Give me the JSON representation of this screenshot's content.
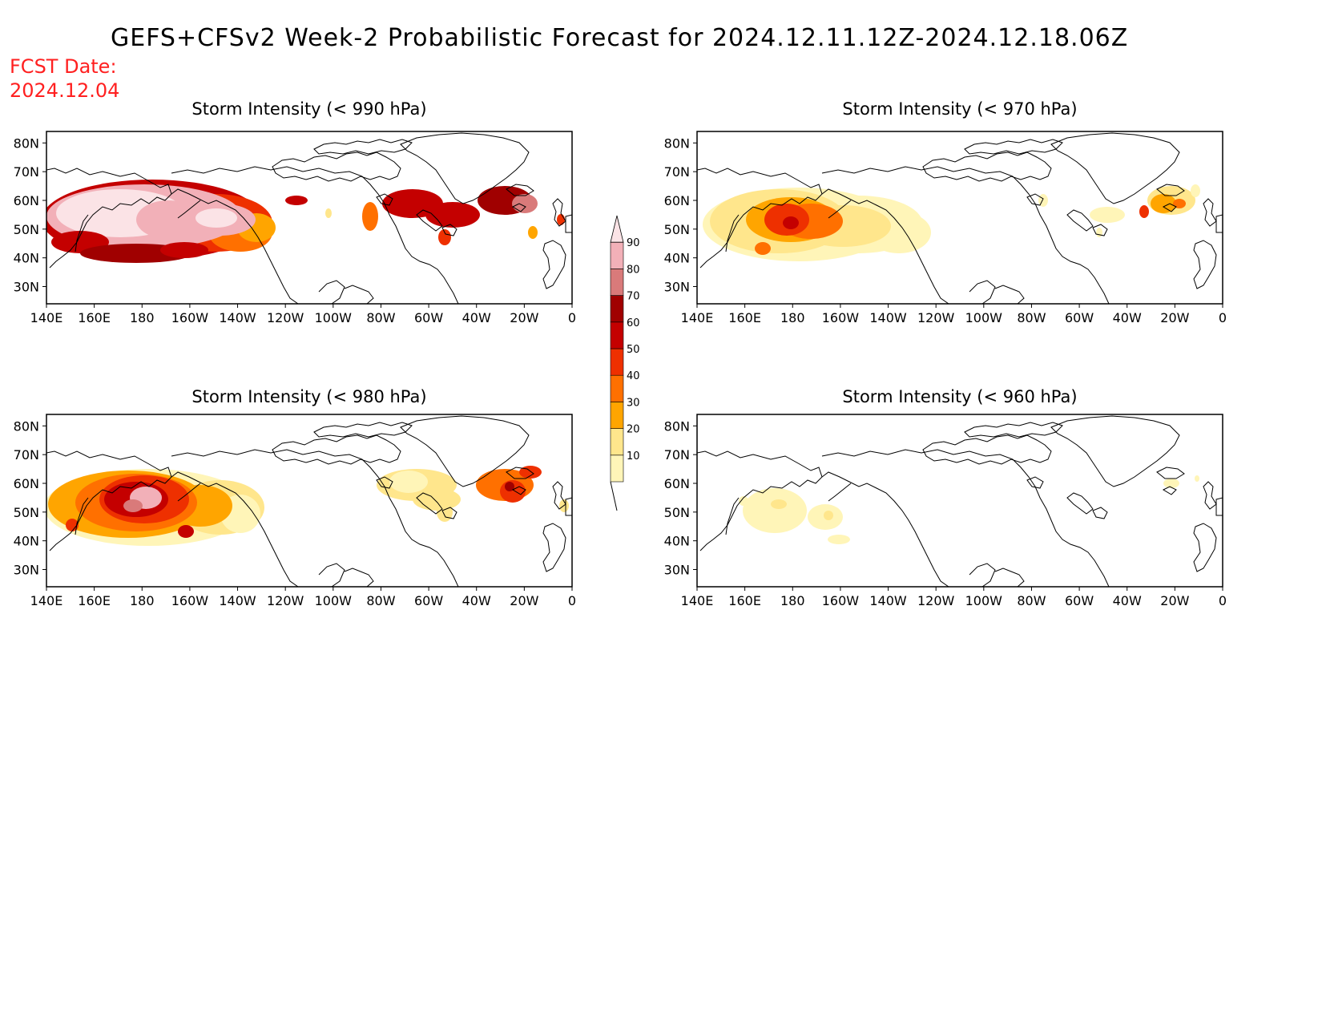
{
  "header": {
    "title": "GEFS+CFSv2 Week-2 Probabilistic Forecast for 2024.12.11.12Z-2024.12.18.06Z",
    "fcst_label": "FCST Date:",
    "fcst_date": "2024.12.04"
  },
  "axes": {
    "lon_labels": [
      "140E",
      "160E",
      "180",
      "160W",
      "140W",
      "120W",
      "100W",
      "80W",
      "60W",
      "40W",
      "20W",
      "0"
    ],
    "lat_labels": [
      "80N",
      "70N",
      "60N",
      "50N",
      "40N",
      "30N"
    ]
  },
  "colorbar": {
    "levels": [
      "10",
      "20",
      "30",
      "40",
      "50",
      "60",
      "70",
      "80",
      "90"
    ],
    "colors": [
      "#fff5b8",
      "#ffe68c",
      "#ffa500",
      "#ff7000",
      "#ee3000",
      "#c40000",
      "#a00000",
      "#d97a7a",
      "#f2b0b8",
      "#fbe3e6"
    ]
  },
  "panels": [
    {
      "id": "p990",
      "title": "Storm Intensity (< 990 hPa)"
    },
    {
      "id": "p970",
      "title": "Storm Intensity (< 970 hPa)"
    },
    {
      "id": "p980",
      "title": "Storm Intensity (< 980 hPa)"
    },
    {
      "id": "p960",
      "title": "Storm Intensity (< 960 hPa)"
    }
  ]
}
